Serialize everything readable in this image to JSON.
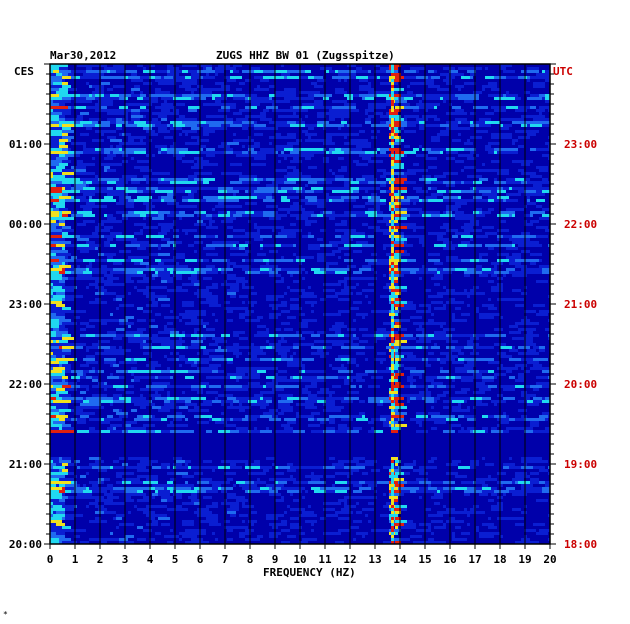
{
  "chart_data": {
    "type": "heatmap",
    "title": "ZUGS HHZ BW 01 (Zugsspitze)",
    "date": "Mar30,2012",
    "xlabel": "FREQUENCY (HZ)",
    "left_axis_label": "CES",
    "right_axis_label": "UTC",
    "x_range": [
      0,
      20
    ],
    "x_ticks": [
      "0",
      "1",
      "2",
      "3",
      "4",
      "5",
      "6",
      "7",
      "8",
      "9",
      "10",
      "11",
      "12",
      "13",
      "14",
      "15",
      "16",
      "17",
      "18",
      "19",
      "20"
    ],
    "left_time_ticks": [
      "01:00",
      "00:00",
      "23:00",
      "22:00",
      "21:00",
      "20:00"
    ],
    "right_time_ticks": [
      "23:00",
      "22:00",
      "21:00",
      "20:00",
      "19:00",
      "18:00"
    ],
    "dominant_frequency_hz": 13.7,
    "gap_band": "21:15-21:30",
    "colors": {
      "background": "#0000aa",
      "low": "#0a1ed2",
      "mid": "#1f6af0",
      "high": "#20d8f0",
      "peak": "#f0e020",
      "hot": "#e02010",
      "left_labels": "#000000",
      "right_labels": "#cc0000"
    }
  },
  "corner_mark": "*"
}
